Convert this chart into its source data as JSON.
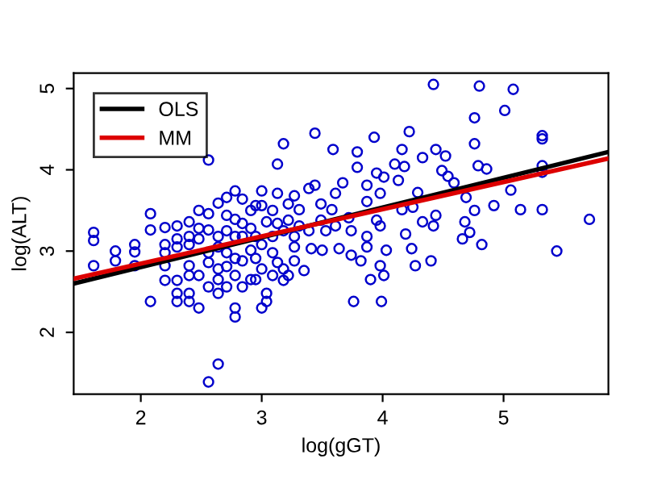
{
  "chart_data": {
    "type": "scatter",
    "xlabel": "log(gGT)",
    "ylabel": "log(ALT)",
    "xlim": [
      1.445,
      5.867
    ],
    "ylim": [
      1.24,
      5.19
    ],
    "xticks": [
      2,
      3,
      4,
      5
    ],
    "yticks": [
      2,
      3,
      4,
      5
    ],
    "grid": false,
    "legend": "top left",
    "series": [
      {
        "color": "#0000cc",
        "marker": "circle",
        "x": [
          1.61,
          1.61,
          1.61,
          1.79,
          1.79,
          1.95,
          1.95,
          1.95,
          2.08,
          2.08,
          2.08,
          2.2,
          2.2,
          2.2,
          2.2,
          2.2,
          2.3,
          2.3,
          2.3,
          2.3,
          2.3,
          2.3,
          2.4,
          2.4,
          2.4,
          2.4,
          2.4,
          2.4,
          2.4,
          2.48,
          2.48,
          2.48,
          2.48,
          2.48,
          2.56,
          2.56,
          2.56,
          2.56,
          2.56,
          2.56,
          2.56,
          2.64,
          2.64,
          2.64,
          2.64,
          2.64,
          2.64,
          2.64,
          2.71,
          2.71,
          2.71,
          2.71,
          2.71,
          2.71,
          2.78,
          2.78,
          2.78,
          2.78,
          2.78,
          2.78,
          2.78,
          2.84,
          2.84,
          2.84,
          2.84,
          2.84,
          2.91,
          2.91,
          2.91,
          2.91,
          2.95,
          2.95,
          2.95,
          2.95,
          3.0,
          3.0,
          3.0,
          3.0,
          3.0,
          3.04,
          3.04,
          3.04,
          3.09,
          3.09,
          3.09,
          3.09,
          3.13,
          3.13,
          3.13,
          3.13,
          3.18,
          3.18,
          3.18,
          3.18,
          3.22,
          3.22,
          3.22,
          3.27,
          3.27,
          3.27,
          3.27,
          3.31,
          3.31,
          3.35,
          3.39,
          3.39,
          3.41,
          3.44,
          3.44,
          3.49,
          3.49,
          3.5,
          3.53,
          3.58,
          3.59,
          3.61,
          3.61,
          3.64,
          3.67,
          3.72,
          3.74,
          3.74,
          3.76,
          3.79,
          3.79,
          3.82,
          3.87,
          3.87,
          3.87,
          3.87,
          3.9,
          3.93,
          3.95,
          3.95,
          3.98,
          3.98,
          3.98,
          3.99,
          4.01,
          4.03,
          4.01,
          4.1,
          4.13,
          4.16,
          4.16,
          4.18,
          4.19,
          4.22,
          4.24,
          4.25,
          4.27,
          4.29,
          4.33,
          4.33,
          4.4,
          4.42,
          4.42,
          4.44,
          4.44,
          4.49,
          4.52,
          4.54,
          4.59,
          4.66,
          4.68,
          4.69,
          4.72,
          4.76,
          4.76,
          4.76,
          4.79,
          4.8,
          4.82,
          4.86,
          4.92,
          5.01,
          5.06,
          5.08,
          5.14,
          5.32,
          5.32,
          5.32,
          5.32,
          5.32,
          5.44,
          5.71
        ],
        "values": [
          3.23,
          3.13,
          2.82,
          3.0,
          2.88,
          3.08,
          2.99,
          2.82,
          3.46,
          3.26,
          2.38,
          3.29,
          3.08,
          2.98,
          2.82,
          2.64,
          3.31,
          3.15,
          3.05,
          2.64,
          2.48,
          2.38,
          3.36,
          3.18,
          3.08,
          2.82,
          2.7,
          2.48,
          2.38,
          3.5,
          3.28,
          3.15,
          2.7,
          2.3,
          4.12,
          3.46,
          3.26,
          2.98,
          2.86,
          2.56,
          1.39,
          1.61,
          3.59,
          3.18,
          3.05,
          2.78,
          2.65,
          2.48,
          3.66,
          3.44,
          3.25,
          2.98,
          2.81,
          2.56,
          3.74,
          3.39,
          3.18,
          2.91,
          2.7,
          2.3,
          2.19,
          3.64,
          3.34,
          3.18,
          2.88,
          2.56,
          3.5,
          3.28,
          3.01,
          2.65,
          3.56,
          3.18,
          2.91,
          2.65,
          3.74,
          3.56,
          3.08,
          2.78,
          2.3,
          3.36,
          2.48,
          2.38,
          3.5,
          3.18,
          2.98,
          2.7,
          4.07,
          3.71,
          3.34,
          2.86,
          4.32,
          3.25,
          2.78,
          2.64,
          3.58,
          3.38,
          2.7,
          3.68,
          3.18,
          3.05,
          2.88,
          3.51,
          3.31,
          2.76,
          3.77,
          3.25,
          3.03,
          4.45,
          3.81,
          3.58,
          3.38,
          3.01,
          3.25,
          3.51,
          4.25,
          3.71,
          3.31,
          3.03,
          3.84,
          3.41,
          3.25,
          2.95,
          2.38,
          4.22,
          4.03,
          2.88,
          3.81,
          3.61,
          3.18,
          3.05,
          2.65,
          4.4,
          3.96,
          3.38,
          3.71,
          3.31,
          2.82,
          2.38,
          3.91,
          3.01,
          2.7,
          4.07,
          3.87,
          4.25,
          3.51,
          4.04,
          3.21,
          4.47,
          3.03,
          3.54,
          2.82,
          3.72,
          4.15,
          3.36,
          2.88,
          5.05,
          3.31,
          4.25,
          3.44,
          3.99,
          4.17,
          3.92,
          3.84,
          3.15,
          3.36,
          3.66,
          3.23,
          4.64,
          4.32,
          3.5,
          4.05,
          5.03,
          3.08,
          4.01,
          3.56,
          4.73,
          3.75,
          4.99,
          3.51,
          4.42,
          4.38,
          4.05,
          3.97,
          3.51,
          3.0,
          3.39
        ]
      },
      {
        "type": "line",
        "name": "OLS",
        "color": "#000000",
        "x": [
          1.445,
          5.867
        ],
        "values": [
          2.6,
          4.22
        ]
      },
      {
        "type": "line",
        "name": "MM",
        "color": "#dd0000",
        "x": [
          1.445,
          5.867
        ],
        "values": [
          2.66,
          4.14
        ]
      }
    ]
  }
}
